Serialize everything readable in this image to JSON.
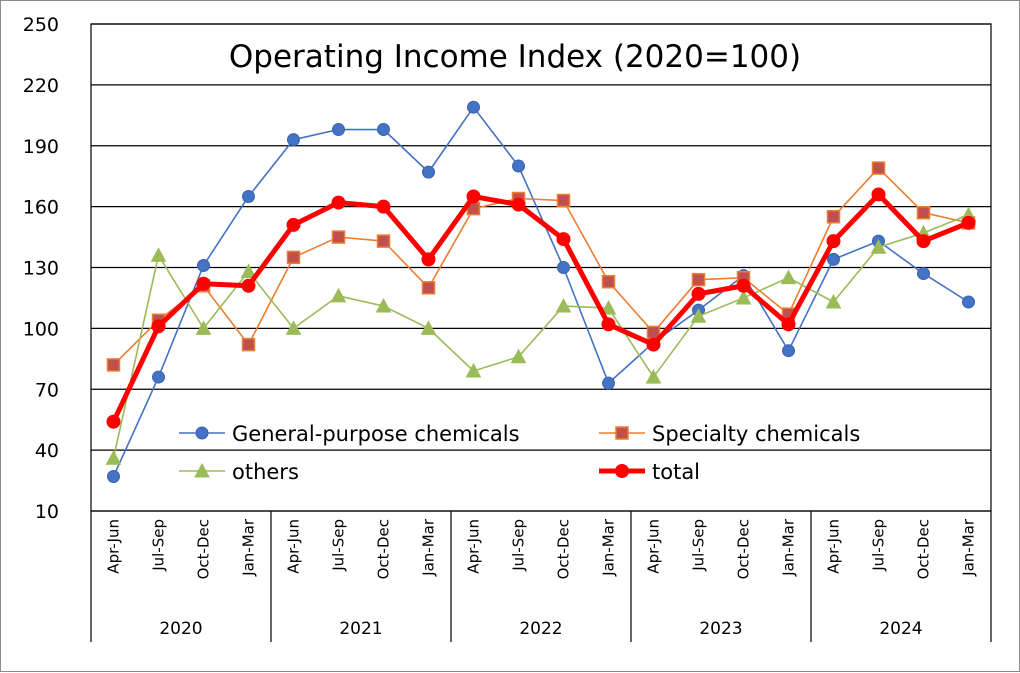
{
  "chart_data": {
    "type": "line",
    "title": "Operating Income Index (2020=100)",
    "xlabel": "",
    "ylabel": "",
    "ylim": [
      10,
      250
    ],
    "yticks": [
      10,
      40,
      70,
      100,
      130,
      160,
      190,
      220,
      250
    ],
    "grid": true,
    "legend_position": "bottom-inside",
    "categories": [
      "Apr-Jun",
      "Jul-Sep",
      "Oct-Dec",
      "Jan-Mar",
      "Apr-Jun",
      "Jul-Sep",
      "Oct-Dec",
      "Jan-Mar",
      "Apr-Jun",
      "Jul-Sep",
      "Oct-Dec",
      "Jan-Mar",
      "Apr-Jun",
      "Jul-Sep",
      "Oct-Dec",
      "Jan-Mar",
      "Apr-Jun",
      "Jul-Sep",
      "Oct-Dec",
      "Jan-Mar"
    ],
    "groups": [
      {
        "label": "2020",
        "count": 4
      },
      {
        "label": "2021",
        "count": 4
      },
      {
        "label": "2022",
        "count": 4
      },
      {
        "label": "2023",
        "count": 4
      },
      {
        "label": "2024",
        "count": 4
      }
    ],
    "series": [
      {
        "name": "General-purpose chemicals",
        "color": "#4472c4",
        "marker": "circle",
        "values": [
          27,
          76,
          131,
          165,
          193,
          198,
          198,
          177,
          209,
          180,
          130,
          73,
          93,
          109,
          126,
          89,
          134,
          143,
          127,
          113
        ]
      },
      {
        "name": "Specialty chemicals",
        "color": "#ed7d31",
        "marker": "square",
        "values": [
          82,
          104,
          121,
          92,
          135,
          145,
          143,
          120,
          159,
          164,
          163,
          123,
          98,
          124,
          125,
          107,
          155,
          179,
          157,
          152
        ]
      },
      {
        "name": "others",
        "color": "#9bbb59",
        "marker": "triangle",
        "values": [
          36,
          136,
          100,
          128,
          100,
          116,
          111,
          100,
          79,
          86,
          111,
          110,
          76,
          106,
          115,
          125,
          113,
          140,
          147,
          156
        ]
      },
      {
        "name": "total",
        "color": "#ff0000",
        "marker": "circle",
        "bold": true,
        "values": [
          54,
          101,
          122,
          121,
          151,
          162,
          160,
          134,
          165,
          161,
          144,
          102,
          92,
          117,
          121,
          102,
          143,
          166,
          143,
          152
        ]
      }
    ]
  }
}
